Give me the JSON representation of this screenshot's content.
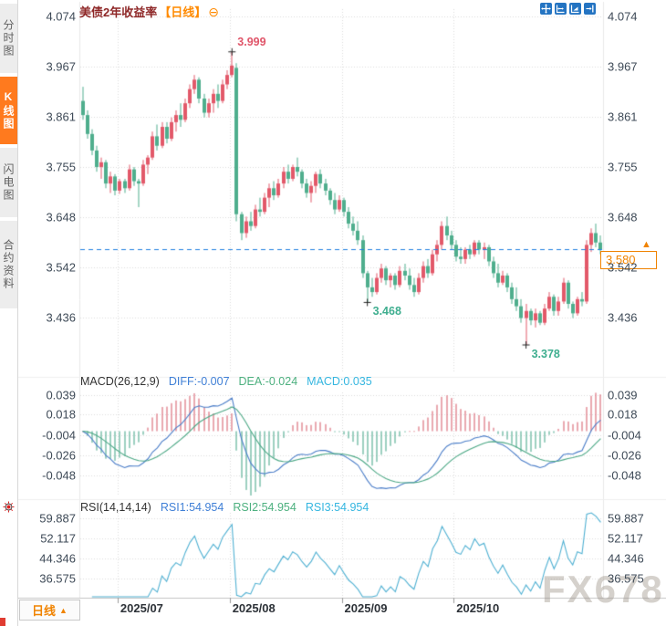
{
  "window_title": "美债2年收益率【日线】",
  "colors": {
    "up": "#e2596a",
    "down": "#4fae8d",
    "accent_orange": "#f08300",
    "active_tab_orange": "#ff7a1e",
    "price_line_blue": "#1e7fe0",
    "diff_line": "#4a7dc8",
    "dea_line": "#4aa784",
    "rsi_line": "#4fb0d2",
    "hist_up": "#d65465",
    "hist_down": "#3da183",
    "grid": "#dcdcdc",
    "axis_text": "#3e4a57",
    "title_maroon": "#8e2727",
    "annotation_high": "#e0566a",
    "annotation_low": "#3fae8f",
    "toolbar_blue": "#2474c2",
    "watermark_gray": "#9b9184"
  },
  "sidebar": {
    "tabs": [
      {
        "label": "分时图",
        "active": false
      },
      {
        "label": "K线图",
        "active": true
      },
      {
        "label": "闪电图",
        "active": false
      },
      {
        "label": "合约资料",
        "active": false
      }
    ]
  },
  "header": {
    "title": "美债2年收益率",
    "period_tag": "【日线】",
    "collapse_icon": "⊖"
  },
  "toolbar": {
    "icons": [
      "pan-icon",
      "fit-horizontal-icon",
      "scale-axis-icon",
      "goto-latest-icon"
    ]
  },
  "macd_header": {
    "name": "MACD(26,12,9)",
    "diff_label": "DIFF:-0.007",
    "dea_label": "DEA:-0.024",
    "macd_label": "MACD:0.035"
  },
  "rsi_header": {
    "name": "RSI(14,14,14)",
    "rsi1_label": "RSI1:54.954",
    "rsi2_label": "RSI2:54.954",
    "rsi3_label": "RSI3:54.954"
  },
  "price_tag": {
    "value": "3.580",
    "marker": "▲"
  },
  "bottom_bar": {
    "period_label": "日线",
    "arrow": "▲"
  },
  "watermark": "FX678",
  "chart_data": {
    "type": "candlestick",
    "title": "美债2年收益率【日线】",
    "current_price": 3.58,
    "y_ticks_main": [
      4.074,
      3.967,
      3.861,
      3.755,
      3.648,
      3.542,
      3.436
    ],
    "x_ticks": [
      {
        "label": "2025/07",
        "index": 8
      },
      {
        "label": "2025/08",
        "index": 32
      },
      {
        "label": "2025/09",
        "index": 56
      },
      {
        "label": "2025/10",
        "index": 80
      }
    ],
    "annotations": [
      {
        "text": "3.999",
        "index": 32,
        "price": 3.999,
        "placement": "above"
      },
      {
        "text": "3.468",
        "index": 61,
        "price": 3.468,
        "placement": "below"
      },
      {
        "text": "3.378",
        "index": 95,
        "price": 3.378,
        "placement": "below"
      }
    ],
    "macd": {
      "params": [
        26,
        12,
        9
      ],
      "diff": -0.007,
      "dea": -0.024,
      "macd": 0.035,
      "y_ticks": [
        0.039,
        0.018,
        -0.004,
        -0.026,
        -0.048
      ]
    },
    "rsi": {
      "params": [
        14,
        14,
        14
      ],
      "rsi1": 54.954,
      "rsi2": 54.954,
      "rsi3": 54.954,
      "y_ticks": [
        59.887,
        52.117,
        44.346,
        36.575
      ]
    },
    "candles": [
      [
        3.895,
        3.925,
        3.855,
        3.865
      ],
      [
        3.865,
        3.875,
        3.815,
        3.825
      ],
      [
        3.825,
        3.835,
        3.78,
        3.79
      ],
      [
        3.79,
        3.8,
        3.745,
        3.755
      ],
      [
        3.755,
        3.775,
        3.73,
        3.765
      ],
      [
        3.765,
        3.77,
        3.71,
        3.72
      ],
      [
        3.72,
        3.745,
        3.7,
        3.735
      ],
      [
        3.735,
        3.74,
        3.695,
        3.705
      ],
      [
        3.705,
        3.73,
        3.698,
        3.725
      ],
      [
        3.725,
        3.73,
        3.7,
        3.71
      ],
      [
        3.71,
        3.76,
        3.705,
        3.75
      ],
      [
        3.75,
        3.755,
        3.715,
        3.725
      ],
      [
        3.725,
        3.73,
        3.67,
        3.72
      ],
      [
        3.72,
        3.77,
        3.715,
        3.76
      ],
      [
        3.76,
        3.78,
        3.74,
        3.775
      ],
      [
        3.775,
        3.83,
        3.77,
        3.82
      ],
      [
        3.82,
        3.845,
        3.79,
        3.8
      ],
      [
        3.8,
        3.85,
        3.795,
        3.84
      ],
      [
        3.84,
        3.85,
        3.805,
        3.815
      ],
      [
        3.815,
        3.86,
        3.81,
        3.85
      ],
      [
        3.85,
        3.875,
        3.83,
        3.865
      ],
      [
        3.865,
        3.89,
        3.84,
        3.855
      ],
      [
        3.855,
        3.9,
        3.85,
        3.89
      ],
      [
        3.89,
        3.93,
        3.88,
        3.92
      ],
      [
        3.92,
        3.95,
        3.91,
        3.94
      ],
      [
        3.94,
        3.945,
        3.89,
        3.9
      ],
      [
        3.9,
        3.91,
        3.86,
        3.87
      ],
      [
        3.87,
        3.9,
        3.86,
        3.89
      ],
      [
        3.89,
        3.92,
        3.87,
        3.91
      ],
      [
        3.91,
        3.93,
        3.88,
        3.895
      ],
      [
        3.895,
        3.94,
        3.89,
        3.93
      ],
      [
        3.93,
        3.96,
        3.92,
        3.95
      ],
      [
        3.95,
        3.999,
        3.945,
        3.97
      ],
      [
        3.965,
        3.975,
        3.64,
        3.655
      ],
      [
        3.655,
        3.66,
        3.6,
        3.615
      ],
      [
        3.615,
        3.65,
        3.605,
        3.64
      ],
      [
        3.64,
        3.66,
        3.62,
        3.63
      ],
      [
        3.63,
        3.675,
        3.625,
        3.665
      ],
      [
        3.665,
        3.69,
        3.65,
        3.66
      ],
      [
        3.66,
        3.7,
        3.655,
        3.69
      ],
      [
        3.69,
        3.72,
        3.67,
        3.71
      ],
      [
        3.71,
        3.725,
        3.685,
        3.695
      ],
      [
        3.695,
        3.73,
        3.69,
        3.72
      ],
      [
        3.72,
        3.755,
        3.71,
        3.745
      ],
      [
        3.745,
        3.76,
        3.72,
        3.73
      ],
      [
        3.73,
        3.76,
        3.725,
        3.755
      ],
      [
        3.755,
        3.775,
        3.735,
        3.745
      ],
      [
        3.745,
        3.75,
        3.71,
        3.72
      ],
      [
        3.72,
        3.73,
        3.69,
        3.7
      ],
      [
        3.7,
        3.725,
        3.68,
        3.715
      ],
      [
        3.715,
        3.745,
        3.7,
        3.74
      ],
      [
        3.74,
        3.75,
        3.71,
        3.72
      ],
      [
        3.72,
        3.73,
        3.695,
        3.705
      ],
      [
        3.705,
        3.71,
        3.675,
        3.685
      ],
      [
        3.685,
        3.7,
        3.655,
        3.665
      ],
      [
        3.665,
        3.695,
        3.66,
        3.685
      ],
      [
        3.685,
        3.69,
        3.65,
        3.66
      ],
      [
        3.66,
        3.67,
        3.625,
        3.635
      ],
      [
        3.635,
        3.65,
        3.61,
        3.62
      ],
      [
        3.62,
        3.64,
        3.59,
        3.6
      ],
      [
        3.6,
        3.61,
        3.52,
        3.53
      ],
      [
        3.53,
        3.535,
        3.468,
        3.5
      ],
      [
        3.5,
        3.52,
        3.48,
        3.49
      ],
      [
        3.49,
        3.53,
        3.485,
        3.52
      ],
      [
        3.52,
        3.55,
        3.51,
        3.54
      ],
      [
        3.54,
        3.545,
        3.505,
        3.515
      ],
      [
        3.515,
        3.53,
        3.5,
        3.525
      ],
      [
        3.525,
        3.53,
        3.495,
        3.505
      ],
      [
        3.505,
        3.545,
        3.5,
        3.535
      ],
      [
        3.535,
        3.55,
        3.515,
        3.525
      ],
      [
        3.525,
        3.54,
        3.495,
        3.505
      ],
      [
        3.505,
        3.52,
        3.48,
        3.49
      ],
      [
        3.49,
        3.53,
        3.485,
        3.52
      ],
      [
        3.52,
        3.555,
        3.51,
        3.545
      ],
      [
        3.545,
        3.56,
        3.52,
        3.53
      ],
      [
        3.53,
        3.58,
        3.525,
        3.57
      ],
      [
        3.57,
        3.6,
        3.555,
        3.59
      ],
      [
        3.59,
        3.64,
        3.58,
        3.63
      ],
      [
        3.63,
        3.65,
        3.6,
        3.61
      ],
      [
        3.61,
        3.62,
        3.58,
        3.59
      ],
      [
        3.59,
        3.6,
        3.555,
        3.565
      ],
      [
        3.565,
        3.585,
        3.55,
        3.56
      ],
      [
        3.56,
        3.585,
        3.55,
        3.58
      ],
      [
        3.58,
        3.59,
        3.56,
        3.57
      ],
      [
        3.57,
        3.6,
        3.565,
        3.595
      ],
      [
        3.595,
        3.6,
        3.57,
        3.58
      ],
      [
        3.58,
        3.595,
        3.56,
        3.585
      ],
      [
        3.585,
        3.59,
        3.545,
        3.555
      ],
      [
        3.555,
        3.565,
        3.52,
        3.53
      ],
      [
        3.53,
        3.55,
        3.5,
        3.51
      ],
      [
        3.51,
        3.535,
        3.505,
        3.525
      ],
      [
        3.525,
        3.53,
        3.49,
        3.5
      ],
      [
        3.5,
        3.51,
        3.465,
        3.475
      ],
      [
        3.475,
        3.5,
        3.45,
        3.46
      ],
      [
        3.46,
        3.475,
        3.425,
        3.435
      ],
      [
        3.435,
        3.465,
        3.378,
        3.45
      ],
      [
        3.45,
        3.455,
        3.42,
        3.43
      ],
      [
        3.43,
        3.455,
        3.415,
        3.445
      ],
      [
        3.445,
        3.45,
        3.42,
        3.425
      ],
      [
        3.425,
        3.465,
        3.42,
        3.455
      ],
      [
        3.455,
        3.49,
        3.45,
        3.48
      ],
      [
        3.48,
        3.485,
        3.44,
        3.45
      ],
      [
        3.45,
        3.48,
        3.44,
        3.47
      ],
      [
        3.47,
        3.52,
        3.465,
        3.51
      ],
      [
        3.51,
        3.515,
        3.455,
        3.465
      ],
      [
        3.465,
        3.47,
        3.435,
        3.445
      ],
      [
        3.445,
        3.48,
        3.44,
        3.475
      ],
      [
        3.475,
        3.49,
        3.46,
        3.47
      ],
      [
        3.47,
        3.6,
        3.465,
        3.59
      ],
      [
        3.59,
        3.625,
        3.575,
        3.615
      ],
      [
        3.615,
        3.635,
        3.585,
        3.595
      ],
      [
        3.595,
        3.61,
        3.57,
        3.58
      ]
    ]
  }
}
